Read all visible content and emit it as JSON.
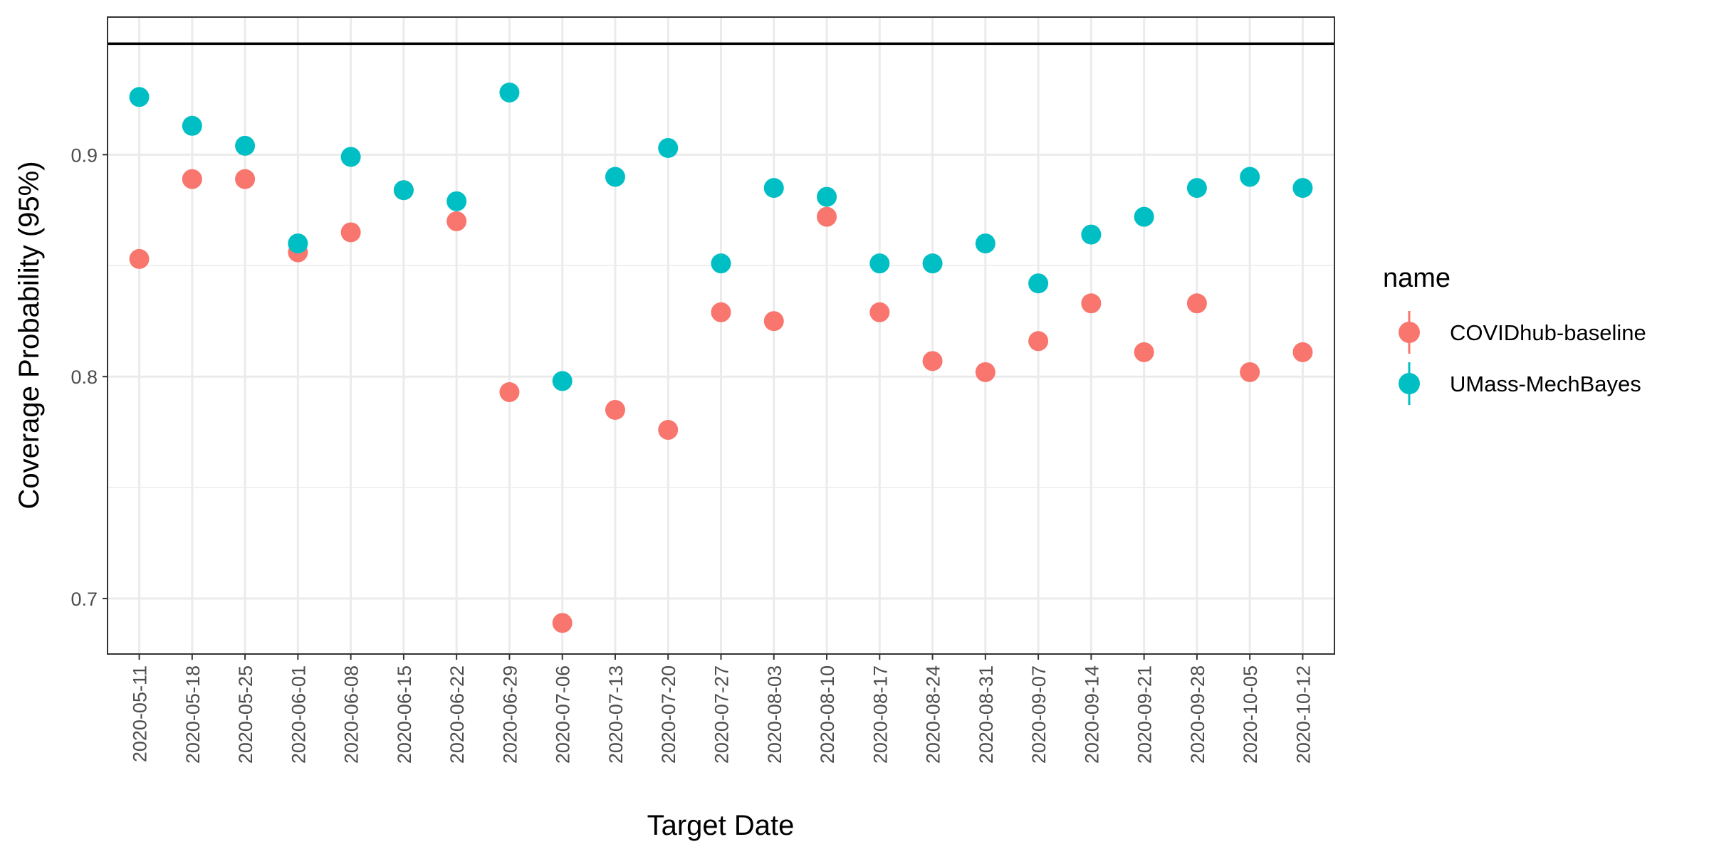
{
  "chart_data": {
    "type": "scatter",
    "xlabel": "Target Date",
    "ylabel": "Coverage Probability (95%)",
    "ylim": [
      0.675,
      0.962
    ],
    "y_ticks": [
      0.7,
      0.8,
      0.9
    ],
    "y_tick_labels": [
      "0.7",
      "0.8",
      "0.9"
    ],
    "reference_line": 0.95,
    "grid": true,
    "legend_position": "right",
    "legend_title": "name",
    "categories": [
      "2020-05-11",
      "2020-05-18",
      "2020-05-25",
      "2020-06-01",
      "2020-06-08",
      "2020-06-15",
      "2020-06-22",
      "2020-06-29",
      "2020-07-06",
      "2020-07-13",
      "2020-07-20",
      "2020-07-27",
      "2020-08-03",
      "2020-08-10",
      "2020-08-17",
      "2020-08-24",
      "2020-08-31",
      "2020-09-07",
      "2020-09-14",
      "2020-09-21",
      "2020-09-28",
      "2020-10-05",
      "2020-10-12"
    ],
    "series": [
      {
        "name": "COVIDhub-baseline",
        "color": "#F8766D",
        "values": [
          0.853,
          0.889,
          0.889,
          0.856,
          0.865,
          0.884,
          0.87,
          0.793,
          0.689,
          0.785,
          0.776,
          0.829,
          0.825,
          0.872,
          0.829,
          0.807,
          0.802,
          0.816,
          0.833,
          0.811,
          0.833,
          0.802,
          0.811
        ]
      },
      {
        "name": "UMass-MechBayes",
        "color": "#00BFC4",
        "values": [
          0.926,
          0.913,
          0.904,
          0.86,
          0.899,
          0.884,
          0.879,
          0.928,
          0.798,
          0.89,
          0.903,
          0.851,
          0.885,
          0.881,
          0.851,
          0.851,
          0.86,
          0.842,
          0.864,
          0.872,
          0.885,
          0.89,
          0.885
        ]
      }
    ]
  }
}
